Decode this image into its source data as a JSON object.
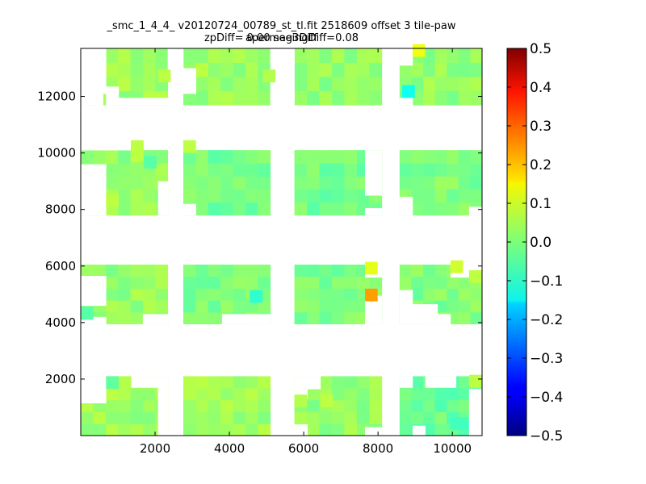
{
  "chart_data": {
    "type": "heatmap",
    "title": "_smc_1_4_4_ v20120724_00789_st_tl.fit 2518609 offset 3 tile-paw apermag3Diff",
    "subtitle": "zpDiff= 0.00 seeingDiff=0.08",
    "xlim": [
      0,
      10800
    ],
    "ylim": [
      0,
      13700
    ],
    "x_ticks": [
      "2000",
      "4000",
      "6000",
      "8000",
      "10000"
    ],
    "x_tick_values": [
      2000,
      4000,
      6000,
      8000,
      10000
    ],
    "y_ticks": [
      "2000",
      "4000",
      "6000",
      "8000",
      "10000",
      "12000"
    ],
    "y_tick_values": [
      2000,
      4000,
      6000,
      8000,
      10000,
      12000
    ],
    "colorbar": {
      "colormap": "jet",
      "vmin": -0.5,
      "vmax": 0.5,
      "ticks": [
        "0.5",
        "0.4",
        "0.3",
        "0.2",
        "0.1",
        "0.0",
        "−0.1",
        "−0.2",
        "−0.3",
        "−0.4",
        "−0.5"
      ],
      "tick_values": [
        0.5,
        0.4,
        0.3,
        0.2,
        0.1,
        0.0,
        -0.1,
        -0.2,
        -0.3,
        -0.4,
        -0.5
      ]
    },
    "cell_width": 340,
    "cell_height": 450,
    "default_value": 0.02,
    "regions": [
      {
        "x0": 0,
        "x1": 2340,
        "y0": 0,
        "y1": 2100,
        "value": 0.03
      },
      {
        "x0": 2760,
        "x1": 5100,
        "y0": 0,
        "y1": 2100,
        "value": 0.03
      },
      {
        "x0": 5750,
        "x1": 8100,
        "y0": 0,
        "y1": 2100,
        "value": 0.02
      },
      {
        "x0": 8580,
        "x1": 10800,
        "y0": 0,
        "y1": 2100,
        "value": -0.02
      },
      {
        "x0": 0,
        "x1": 2340,
        "y0": 3950,
        "y1": 6050,
        "value": 0.02
      },
      {
        "x0": 2760,
        "x1": 5100,
        "y0": 3950,
        "y1": 6050,
        "value": 0.0
      },
      {
        "x0": 5750,
        "x1": 8100,
        "y0": 3950,
        "y1": 6050,
        "value": 0.0
      },
      {
        "x0": 8580,
        "x1": 10800,
        "y0": 3950,
        "y1": 6050,
        "value": 0.0
      },
      {
        "x0": 0,
        "x1": 2340,
        "y0": 7800,
        "y1": 10100,
        "value": 0.02
      },
      {
        "x0": 2760,
        "x1": 5100,
        "y0": 7800,
        "y1": 10100,
        "value": -0.01
      },
      {
        "x0": 5750,
        "x1": 8100,
        "y0": 7800,
        "y1": 10100,
        "value": -0.01
      },
      {
        "x0": 8580,
        "x1": 10800,
        "y0": 7800,
        "y1": 10100,
        "value": 0.0
      },
      {
        "x0": 0,
        "x1": 2340,
        "y0": 11700,
        "y1": 13700,
        "value": 0.03
      },
      {
        "x0": 2760,
        "x1": 5100,
        "y0": 11700,
        "y1": 13700,
        "value": 0.03
      },
      {
        "x0": 5750,
        "x1": 8100,
        "y0": 11700,
        "y1": 13700,
        "value": 0.02
      },
      {
        "x0": 8580,
        "x1": 10800,
        "y0": 11700,
        "y1": 13700,
        "value": 0.02
      }
    ],
    "holes": [
      {
        "x0": 0,
        "x1": 600,
        "y0": 11700,
        "y1": 13700
      },
      {
        "x0": 600,
        "x1": 680,
        "y0": 12100,
        "y1": 13700
      },
      {
        "x0": 680,
        "x1": 1020,
        "y0": 11700,
        "y1": 12350
      },
      {
        "x0": 1020,
        "x1": 2340,
        "y0": 11700,
        "y1": 11950
      },
      {
        "x0": 2340,
        "x1": 2760,
        "y0": 12700,
        "y1": 13700
      },
      {
        "x0": 2760,
        "x1": 3100,
        "y0": 12100,
        "y1": 13000
      },
      {
        "x0": 5100,
        "x1": 5750,
        "y0": 11700,
        "y1": 13700
      },
      {
        "x0": 8580,
        "x1": 8930,
        "y0": 11700,
        "y1": 11950
      },
      {
        "x0": 8580,
        "x1": 8930,
        "y0": 13100,
        "y1": 13700
      },
      {
        "x0": 0,
        "x1": 1350,
        "y0": 10100,
        "y1": 10500
      },
      {
        "x0": 0,
        "x1": 680,
        "y0": 7800,
        "y1": 8100
      },
      {
        "x0": 0,
        "x1": 680,
        "y0": 8100,
        "y1": 9600
      },
      {
        "x0": 2080,
        "x1": 2340,
        "y0": 7800,
        "y1": 9000
      },
      {
        "x0": 2760,
        "x1": 3100,
        "y0": 7800,
        "y1": 8200
      },
      {
        "x0": 7650,
        "x1": 8100,
        "y0": 7800,
        "y1": 8050
      },
      {
        "x0": 7650,
        "x1": 8100,
        "y0": 8500,
        "y1": 10100
      },
      {
        "x0": 8580,
        "x1": 8930,
        "y0": 7800,
        "y1": 8450
      },
      {
        "x0": 10450,
        "x1": 10800,
        "y0": 7800,
        "y1": 8100
      },
      {
        "x0": 0,
        "x1": 680,
        "y0": 3950,
        "y1": 4200
      },
      {
        "x0": 0,
        "x1": 680,
        "y0": 4600,
        "y1": 5650
      },
      {
        "x0": 1670,
        "x1": 2340,
        "y0": 3950,
        "y1": 4300
      },
      {
        "x0": 3800,
        "x1": 5100,
        "y0": 3950,
        "y1": 4300
      },
      {
        "x0": 7650,
        "x1": 8100,
        "y0": 3950,
        "y1": 4950
      },
      {
        "x0": 7650,
        "x1": 8100,
        "y0": 5600,
        "y1": 6050
      },
      {
        "x0": 8580,
        "x1": 8930,
        "y0": 3950,
        "y1": 5150
      },
      {
        "x0": 8930,
        "x1": 9600,
        "y0": 3950,
        "y1": 4650
      },
      {
        "x0": 9600,
        "x1": 9950,
        "y0": 3950,
        "y1": 4300
      },
      {
        "x0": 9950,
        "x1": 10800,
        "y0": 5600,
        "y1": 6050
      },
      {
        "x0": 0,
        "x1": 680,
        "y0": 1150,
        "y1": 1650
      },
      {
        "x0": 0,
        "x1": 680,
        "y0": 1650,
        "y1": 2100
      },
      {
        "x0": 1020,
        "x1": 2340,
        "y0": 1700,
        "y1": 2100
      },
      {
        "x0": 2080,
        "x1": 2340,
        "y0": 0,
        "y1": 2100
      },
      {
        "x0": 5750,
        "x1": 6100,
        "y0": 0,
        "y1": 400
      },
      {
        "x0": 5750,
        "x1": 6100,
        "y0": 1300,
        "y1": 2100
      },
      {
        "x0": 6100,
        "x1": 6450,
        "y0": 1650,
        "y1": 2100
      },
      {
        "x0": 7650,
        "x1": 8100,
        "y0": 0,
        "y1": 300
      },
      {
        "x0": 8580,
        "x1": 8930,
        "y0": 1700,
        "y1": 2100
      },
      {
        "x0": 9270,
        "x1": 10100,
        "y0": 1700,
        "y1": 2100
      },
      {
        "x0": 8930,
        "x1": 9270,
        "y0": 0,
        "y1": 350
      },
      {
        "x0": 10450,
        "x1": 10800,
        "y0": 0,
        "y1": 1650
      }
    ],
    "highlights": [
      {
        "x": 8930,
        "y": 13400,
        "value": 0.11
      },
      {
        "x": 8650,
        "y": 11950,
        "value": -0.11
      },
      {
        "x": 1350,
        "y": 9700,
        "value": 0.06
      },
      {
        "x": 1350,
        "y": 10000,
        "value": 0.06
      },
      {
        "x": 2760,
        "y": 10000,
        "value": 0.06
      },
      {
        "x": 1700,
        "y": 9450,
        "value": -0.04
      },
      {
        "x": 680,
        "y": 8100,
        "value": 0.06
      },
      {
        "x": 7650,
        "y": 5700,
        "value": 0.1
      },
      {
        "x": 7650,
        "y": 4750,
        "value": 0.22
      },
      {
        "x": 9950,
        "y": 5750,
        "value": 0.08
      },
      {
        "x": 4550,
        "y": 4700,
        "value": -0.08
      },
      {
        "x": 10450,
        "y": 5400,
        "value": 0.06
      },
      {
        "x": 0,
        "y": 4100,
        "value": -0.04
      },
      {
        "x": 680,
        "y": 1650,
        "value": -0.03
      },
      {
        "x": 1020,
        "y": 1650,
        "value": 0.05
      },
      {
        "x": 6450,
        "y": 1000,
        "value": 0.06
      },
      {
        "x": 5750,
        "y": 1000,
        "value": 0.05
      },
      {
        "x": 9950,
        "y": 200,
        "value": -0.06
      },
      {
        "x": 10100,
        "y": 200,
        "value": -0.06
      },
      {
        "x": 10450,
        "y": 1700,
        "value": 0.06
      },
      {
        "x": 2080,
        "y": 12500,
        "value": 0.06
      },
      {
        "x": 4900,
        "y": 12500,
        "value": 0.05
      }
    ]
  }
}
